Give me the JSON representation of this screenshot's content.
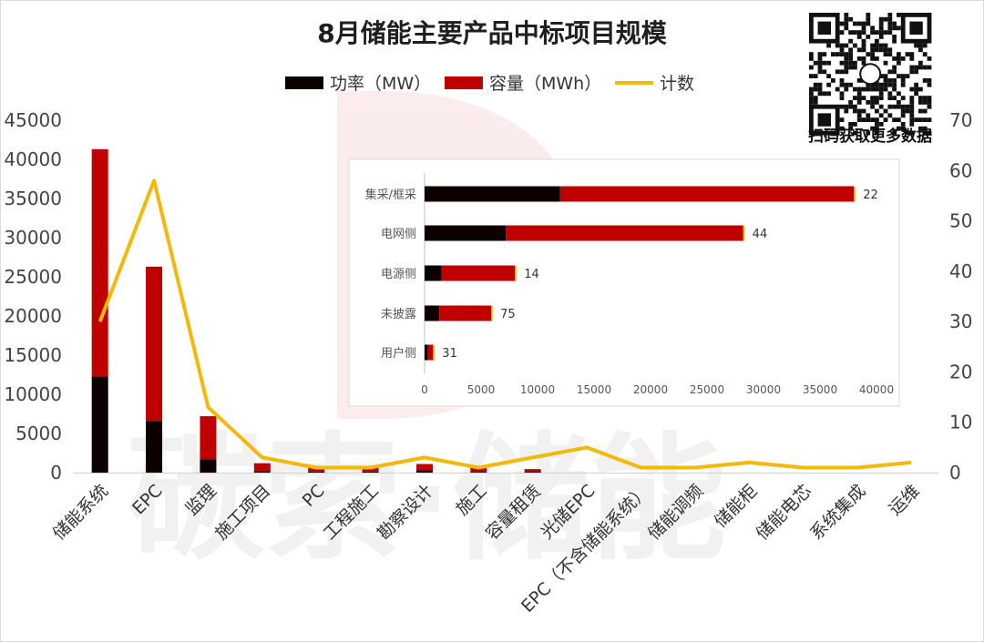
{
  "chart_data": [
    {
      "type": "bar+line",
      "title": "8月储能主要产品中标项目规模",
      "categories": [
        "储能系统",
        "EPC",
        "监理",
        "施工项目",
        "PC",
        "工程施工",
        "勘察设计",
        "施工",
        "容量租赁",
        "光储EPC",
        "EPC（不含储能系统）",
        "储能调频",
        "储能柜",
        "储能电芯",
        "系统集成",
        "运维"
      ],
      "series": [
        {
          "name": "功率（MW）",
          "axis": "left",
          "kind": "stacked-bar",
          "color": "#0d0000",
          "values": [
            12300,
            6600,
            1700,
            200,
            150,
            150,
            300,
            100,
            100,
            0,
            0,
            0,
            0,
            0,
            0,
            0
          ]
        },
        {
          "name": "容量（MWh）",
          "axis": "left",
          "kind": "stacked-bar",
          "color": "#c00000",
          "values": [
            29000,
            19700,
            5500,
            1000,
            500,
            500,
            800,
            600,
            350,
            0,
            0,
            0,
            0,
            0,
            0,
            0
          ]
        },
        {
          "name": "计数",
          "axis": "right",
          "kind": "line",
          "color": "#f2b80a",
          "values": [
            30,
            58,
            13,
            3,
            1,
            1,
            3,
            1,
            3,
            5,
            1,
            1,
            2,
            1,
            1,
            2
          ]
        }
      ],
      "yticks_left": [
        "0",
        "5000",
        "10000",
        "15000",
        "20000",
        "25000",
        "30000",
        "35000",
        "40000",
        "45000"
      ],
      "ylim_left": [
        0,
        45000
      ],
      "yticks_right": [
        "0",
        "10",
        "20",
        "30",
        "40",
        "50",
        "60",
        "70"
      ],
      "ylim_right": [
        0,
        70
      ],
      "legend_position": "top-center",
      "grid": false
    },
    {
      "type": "bar",
      "orientation": "horizontal",
      "categories": [
        "集采/框采",
        "电网侧",
        "电源侧",
        "未披露",
        "用户侧"
      ],
      "series": [
        {
          "name": "功率（MW）",
          "color": "#0d0000",
          "values": [
            12000,
            7200,
            1500,
            1300,
            300
          ]
        },
        {
          "name": "容量（MWh）",
          "color": "#c00000",
          "values": [
            26000,
            21000,
            6500,
            4600,
            450
          ]
        }
      ],
      "labels": [
        "22",
        "44",
        "14",
        "75",
        "31"
      ],
      "xticks": [
        "0",
        "5000",
        "10000",
        "15000",
        "20000",
        "25000",
        "30000",
        "35000",
        "40000"
      ],
      "xlim": [
        0,
        40000
      ],
      "grid": false
    }
  ],
  "legend": {
    "power_label": "功率（MW）",
    "capacity_label": "容量（MWh）",
    "count_label": "计数"
  },
  "watermark": {
    "text": "碳索·储能"
  },
  "qr": {
    "caption": "扫码获取更多数据"
  },
  "colors": {
    "power": "#0d0000",
    "capacity": "#c00000",
    "count": "#f2b80a"
  }
}
